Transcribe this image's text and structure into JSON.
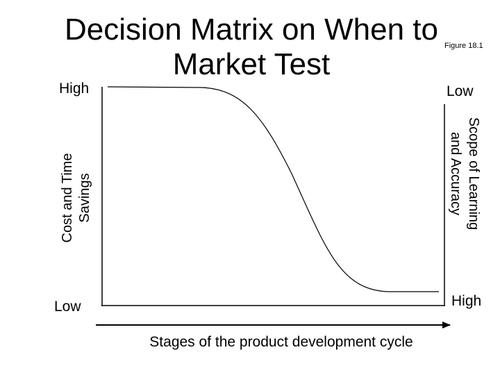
{
  "header": {
    "title": "Decision Matrix on When to Market Test",
    "figure": "Figure 18.1"
  },
  "left_axis": {
    "label": "Cost and Time Savings",
    "top": "High",
    "bottom": "Low"
  },
  "right_axis": {
    "label": "Scope of Learning and Accuracy",
    "top": "Low",
    "bottom": "High"
  },
  "x_axis": {
    "label": "Stages of the product development cycle"
  }
}
